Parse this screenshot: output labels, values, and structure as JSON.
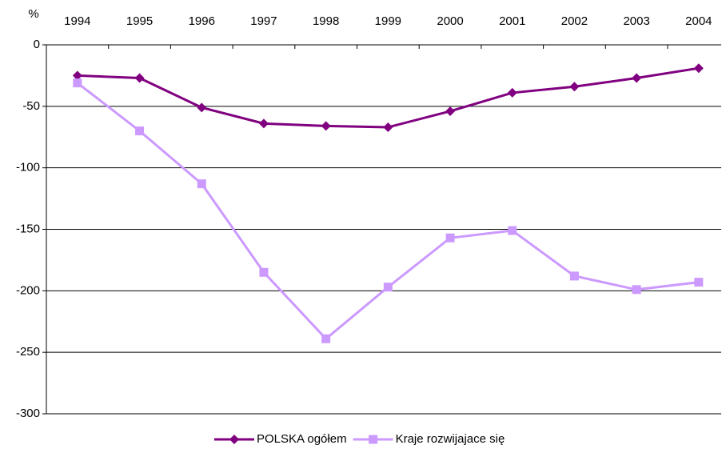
{
  "chart_data": {
    "type": "line",
    "y_label": "%",
    "categories": [
      "1994",
      "1995",
      "1996",
      "1997",
      "1998",
      "1999",
      "2000",
      "2001",
      "2002",
      "2003",
      "2004"
    ],
    "series": [
      {
        "name": "POLSKA ogółem",
        "color": "#800080",
        "marker": "diamond",
        "values": [
          -25,
          -27,
          -51,
          -64,
          -66,
          -67,
          -54,
          -39,
          -34,
          -27,
          -19
        ]
      },
      {
        "name": "Kraje rozwijajace się",
        "color": "#cc99ff",
        "marker": "square",
        "values": [
          -31,
          -70,
          -113,
          -185,
          -239,
          -197,
          -157,
          -151,
          -188,
          -199,
          -193
        ]
      }
    ],
    "ylim": [
      -300,
      0
    ],
    "yticks": [
      0,
      -50,
      -100,
      -150,
      -200,
      -250,
      -300
    ],
    "grid": true,
    "legend": "bottom"
  }
}
